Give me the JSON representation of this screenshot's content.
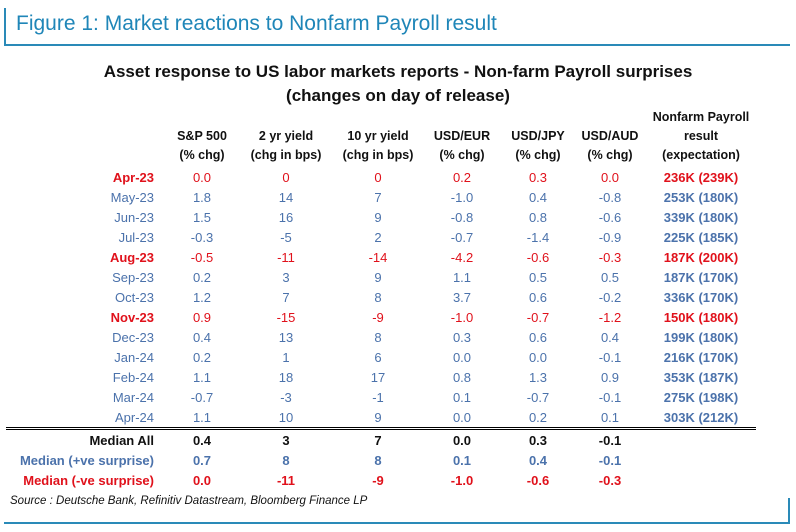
{
  "figure_title": "Figure 1: Market reactions to Nonfarm Payroll result",
  "chart_title_line1": "Asset response to US labor markets reports - Non-farm Payroll surprises",
  "chart_title_line2": "(changes on day of release)",
  "columns": [
    {
      "line1": "S&P 500",
      "line2": "(% chg)"
    },
    {
      "line1": "2 yr yield",
      "line2": "(chg in bps)"
    },
    {
      "line1": "10 yr yield",
      "line2": "(chg in bps)"
    },
    {
      "line1": "USD/EUR",
      "line2": "(% chg)"
    },
    {
      "line1": "USD/JPY",
      "line2": "(% chg)"
    },
    {
      "line1": "USD/AUD",
      "line2": "(% chg)"
    },
    {
      "line1": "Nonfarm Payroll",
      "line2": "result",
      "line3": "(expectation)"
    }
  ],
  "rows": [
    {
      "month": "Apr-23",
      "sp500": "0.0",
      "y2": "0",
      "y10": "0",
      "usdeur": "0.2",
      "usdjpy": "0.3",
      "usdaud": "0.0",
      "nfp": "236K (239K)",
      "surprise": "negative"
    },
    {
      "month": "May-23",
      "sp500": "1.8",
      "y2": "14",
      "y10": "7",
      "usdeur": "-1.0",
      "usdjpy": "0.4",
      "usdaud": "-0.8",
      "nfp": "253K (180K)",
      "surprise": "positive"
    },
    {
      "month": "Jun-23",
      "sp500": "1.5",
      "y2": "16",
      "y10": "9",
      "usdeur": "-0.8",
      "usdjpy": "0.8",
      "usdaud": "-0.6",
      "nfp": "339K (180K)",
      "surprise": "positive"
    },
    {
      "month": "Jul-23",
      "sp500": "-0.3",
      "y2": "-5",
      "y10": "2",
      "usdeur": "-0.7",
      "usdjpy": "-1.4",
      "usdaud": "-0.9",
      "nfp": "225K (185K)",
      "surprise": "positive"
    },
    {
      "month": "Aug-23",
      "sp500": "-0.5",
      "y2": "-11",
      "y10": "-14",
      "usdeur": "-4.2",
      "usdjpy": "-0.6",
      "usdaud": "-0.3",
      "nfp": "187K (200K)",
      "surprise": "negative"
    },
    {
      "month": "Sep-23",
      "sp500": "0.2",
      "y2": "3",
      "y10": "9",
      "usdeur": "1.1",
      "usdjpy": "0.5",
      "usdaud": "0.5",
      "nfp": "187K (170K)",
      "surprise": "positive"
    },
    {
      "month": "Oct-23",
      "sp500": "1.2",
      "y2": "7",
      "y10": "8",
      "usdeur": "3.7",
      "usdjpy": "0.6",
      "usdaud": "-0.2",
      "nfp": "336K (170K)",
      "surprise": "positive"
    },
    {
      "month": "Nov-23",
      "sp500": "0.9",
      "y2": "-15",
      "y10": "-9",
      "usdeur": "-1.0",
      "usdjpy": "-0.7",
      "usdaud": "-1.2",
      "nfp": "150K (180K)",
      "surprise": "negative"
    },
    {
      "month": "Dec-23",
      "sp500": "0.4",
      "y2": "13",
      "y10": "8",
      "usdeur": "0.3",
      "usdjpy": "0.6",
      "usdaud": "0.4",
      "nfp": "199K (180K)",
      "surprise": "positive"
    },
    {
      "month": "Jan-24",
      "sp500": "0.2",
      "y2": "1",
      "y10": "6",
      "usdeur": "0.0",
      "usdjpy": "0.0",
      "usdaud": "-0.1",
      "nfp": "216K (170K)",
      "surprise": "positive"
    },
    {
      "month": "Feb-24",
      "sp500": "1.1",
      "y2": "18",
      "y10": "17",
      "usdeur": "0.8",
      "usdjpy": "1.3",
      "usdaud": "0.9",
      "nfp": "353K (187K)",
      "surprise": "positive"
    },
    {
      "month": "Mar-24",
      "sp500": "-0.7",
      "y2": "-3",
      "y10": "-1",
      "usdeur": "0.1",
      "usdjpy": "-0.7",
      "usdaud": "-0.1",
      "nfp": "275K (198K)",
      "surprise": "positive"
    },
    {
      "month": "Apr-24",
      "sp500": "1.1",
      "y2": "10",
      "y10": "9",
      "usdeur": "0.0",
      "usdjpy": "0.2",
      "usdaud": "0.1",
      "nfp": "303K (212K)",
      "surprise": "positive"
    }
  ],
  "medians": [
    {
      "label": "Median All",
      "sp500": "0.4",
      "y2": "3",
      "y10": "7",
      "usdeur": "0.0",
      "usdjpy": "0.3",
      "usdaud": "-0.1",
      "kind": "all"
    },
    {
      "label": "Median (+ve surprise)",
      "sp500": "0.7",
      "y2": "8",
      "y10": "8",
      "usdeur": "0.1",
      "usdjpy": "0.4",
      "usdaud": "-0.1",
      "kind": "pos"
    },
    {
      "label": "Median (-ve surprise)",
      "sp500": "0.0",
      "y2": "-11",
      "y10": "-9",
      "usdeur": "-1.0",
      "usdjpy": "-0.6",
      "usdaud": "-0.3",
      "kind": "neg"
    }
  ],
  "source": "Source : Deutsche Bank, Refinitiv Datastream, Bloomberg Finance LP",
  "colors": {
    "accent_blue": "#1f86b8",
    "negative_surprise_red": "#e0111b",
    "positive_surprise_blue": "#4b72ab"
  }
}
